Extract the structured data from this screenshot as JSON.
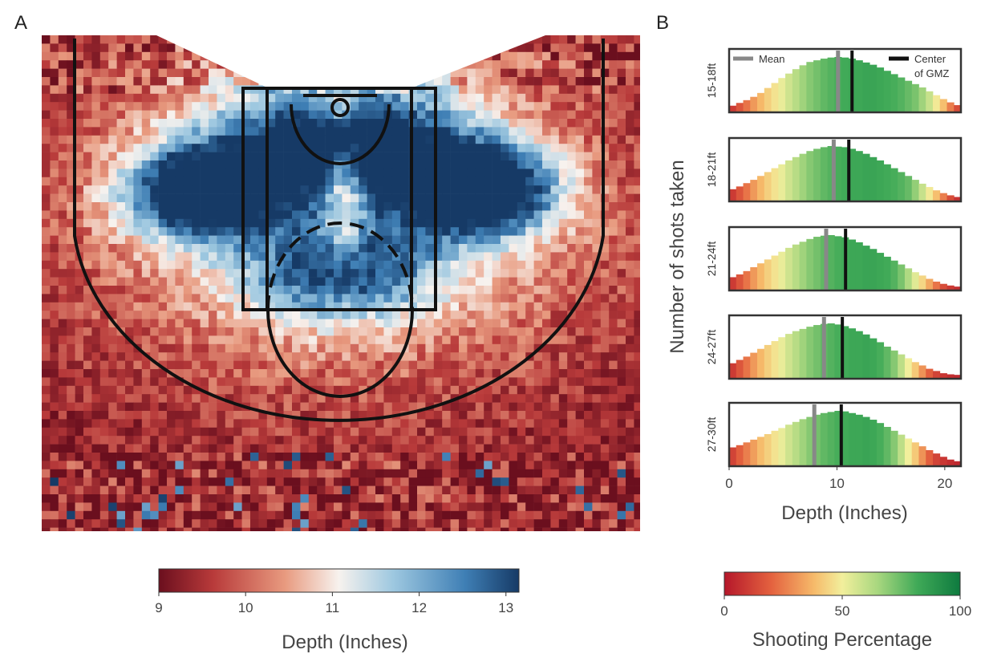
{
  "panel_a": {
    "letter": "A",
    "chart_data": {
      "type": "heatmap",
      "description_key": "court-depth-heatmap",
      "value_range": [
        9,
        13
      ],
      "colorbar": {
        "ticks": [
          "9",
          "10",
          "11",
          "12",
          "13"
        ],
        "tick_values": [
          9,
          10,
          11,
          12,
          13
        ],
        "label": "Depth (Inches)",
        "colors": [
          "#6b0f1e",
          "#b83a3a",
          "#e89a7f",
          "#f7f2ee",
          "#9ec8e0",
          "#3f7fb5",
          "#163a66"
        ]
      },
      "court_lines_color": "#111111"
    }
  },
  "panel_b": {
    "letter": "B",
    "chart_data": {
      "type": "bar",
      "ylabel": "Number of shots taken",
      "xlabel": "Depth (Inches)",
      "x_ticks": [
        "0",
        "10",
        "20"
      ],
      "x_tick_values": [
        0,
        10,
        20
      ],
      "xlim": [
        0,
        21.5
      ],
      "legend": [
        {
          "label": "Mean",
          "color": "#888888"
        },
        {
          "label": "Center\nof GMZ",
          "color": "#111111"
        }
      ],
      "series": [
        {
          "name": "15-18ft",
          "mean": 10.1,
          "center": 11.4,
          "values": [
            12,
            17,
            22,
            28,
            35,
            44,
            53,
            62,
            70,
            78,
            85,
            91,
            94,
            97,
            99,
            100,
            99,
            97,
            94,
            90,
            86,
            81,
            75,
            69,
            63,
            57,
            51,
            45,
            38,
            31,
            24,
            18,
            13
          ],
          "colors_pct": [
            8,
            14,
            20,
            27,
            33,
            40,
            46,
            52,
            58,
            63,
            68,
            72,
            75,
            78,
            80,
            82,
            83,
            84,
            84,
            85,
            85,
            84,
            83,
            82,
            80,
            77,
            74,
            68,
            60,
            48,
            35,
            22,
            12
          ]
        },
        {
          "name": "18-21ft",
          "mean": 9.7,
          "center": 11.1,
          "values": [
            22,
            27,
            33,
            39,
            46,
            53,
            60,
            67,
            74,
            80,
            86,
            91,
            95,
            98,
            100,
            99,
            98,
            95,
            91,
            86,
            80,
            74,
            67,
            60,
            53,
            46,
            39,
            32,
            26,
            20,
            15,
            11,
            8
          ],
          "colors_pct": [
            8,
            14,
            20,
            27,
            33,
            40,
            46,
            52,
            58,
            63,
            68,
            72,
            75,
            78,
            80,
            82,
            83,
            84,
            84,
            85,
            85,
            84,
            83,
            82,
            80,
            77,
            70,
            60,
            48,
            35,
            22,
            12,
            6
          ]
        },
        {
          "name": "21-24ft",
          "mean": 9.0,
          "center": 10.8,
          "values": [
            24,
            29,
            35,
            42,
            49,
            56,
            63,
            70,
            77,
            83,
            88,
            93,
            97,
            99,
            100,
            98,
            96,
            92,
            87,
            81,
            75,
            68,
            61,
            54,
            47,
            40,
            33,
            27,
            21,
            16,
            12,
            9,
            7
          ],
          "colors_pct": [
            8,
            14,
            20,
            27,
            33,
            40,
            46,
            52,
            58,
            63,
            68,
            72,
            75,
            78,
            80,
            82,
            83,
            84,
            84,
            85,
            85,
            84,
            83,
            80,
            74,
            65,
            54,
            42,
            30,
            20,
            12,
            8,
            5
          ]
        },
        {
          "name": "24-27ft",
          "mean": 8.8,
          "center": 10.5,
          "values": [
            28,
            34,
            40,
            47,
            54,
            61,
            68,
            75,
            81,
            86,
            90,
            94,
            97,
            99,
            100,
            98,
            95,
            91,
            86,
            80,
            73,
            66,
            58,
            51,
            44,
            37,
            30,
            24,
            18,
            14,
            10,
            8,
            7
          ],
          "colors_pct": [
            8,
            14,
            20,
            27,
            33,
            40,
            46,
            52,
            58,
            63,
            68,
            72,
            75,
            78,
            80,
            82,
            83,
            84,
            84,
            85,
            84,
            82,
            78,
            72,
            62,
            50,
            38,
            26,
            16,
            10,
            7,
            5,
            4
          ]
        },
        {
          "name": "27-30ft",
          "mean": 7.9,
          "center": 10.4,
          "values": [
            34,
            38,
            43,
            48,
            53,
            58,
            64,
            69,
            75,
            80,
            85,
            89,
            93,
            96,
            98,
            100,
            99,
            96,
            93,
            89,
            84,
            78,
            71,
            64,
            57,
            50,
            43,
            36,
            29,
            23,
            17,
            12,
            9
          ],
          "colors_pct": [
            10,
            16,
            22,
            28,
            34,
            40,
            46,
            52,
            58,
            63,
            68,
            72,
            75,
            78,
            80,
            82,
            83,
            84,
            84,
            85,
            84,
            82,
            78,
            72,
            62,
            50,
            38,
            26,
            16,
            10,
            7,
            5,
            4
          ]
        }
      ],
      "colorbar": {
        "ticks": [
          "0",
          "50",
          "100"
        ],
        "tick_values": [
          0,
          50,
          100
        ],
        "label": "Shooting Percentage",
        "colors": [
          "#b5172a",
          "#e4623f",
          "#f6ba6a",
          "#f2ef9c",
          "#a8d77f",
          "#3fa957",
          "#0e7a3f"
        ]
      }
    }
  }
}
